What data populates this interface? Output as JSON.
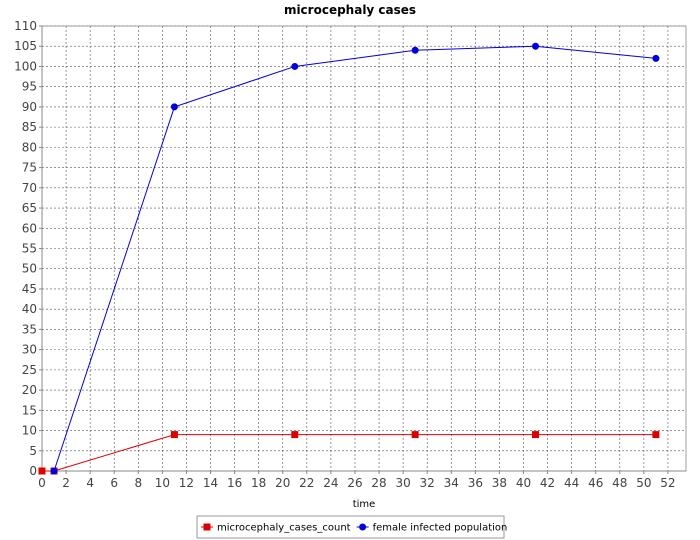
{
  "chart_data": {
    "type": "line",
    "title": "microcephaly cases",
    "xlabel": "time",
    "ylabel": "",
    "xlim": [
      0,
      53.5
    ],
    "ylim": [
      0,
      110
    ],
    "xticks": [
      0,
      2,
      4,
      6,
      8,
      10,
      12,
      14,
      16,
      18,
      20,
      22,
      24,
      26,
      28,
      30,
      32,
      34,
      36,
      38,
      40,
      42,
      44,
      46,
      48,
      50,
      52
    ],
    "yticks": [
      0,
      5,
      10,
      15,
      20,
      25,
      30,
      35,
      40,
      45,
      50,
      55,
      60,
      65,
      70,
      75,
      80,
      85,
      90,
      95,
      100,
      105,
      110
    ],
    "grid": true,
    "legend_position": "bottom",
    "series": [
      {
        "name": "microcephaly_cases_count",
        "color": "#dd0000",
        "marker": "square",
        "x": [
          0,
          1,
          11,
          21,
          31,
          41,
          51
        ],
        "y": [
          0,
          0,
          9,
          9,
          9,
          9,
          9
        ]
      },
      {
        "name": "female infected population",
        "color": "#0000dd",
        "marker": "circle",
        "x": [
          1,
          11,
          21,
          31,
          41,
          51
        ],
        "y": [
          0,
          90,
          100,
          104,
          105,
          102
        ]
      }
    ]
  }
}
